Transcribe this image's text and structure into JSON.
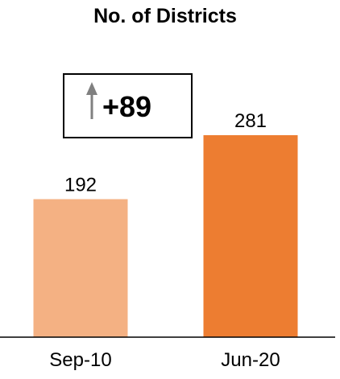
{
  "chart_data": {
    "type": "bar",
    "title": "No. of Districts",
    "categories": [
      "Sep-10",
      "Jun-20"
    ],
    "values": [
      192,
      281
    ],
    "colors": [
      "#F4B183",
      "#ED7D31"
    ],
    "ylim": [
      0,
      281
    ],
    "xlabel": "",
    "ylabel": "",
    "grid": false,
    "legend": "none",
    "annotation": {
      "text": "+89",
      "icon": "up-arrow-icon",
      "arrow_color": "#808080"
    }
  }
}
